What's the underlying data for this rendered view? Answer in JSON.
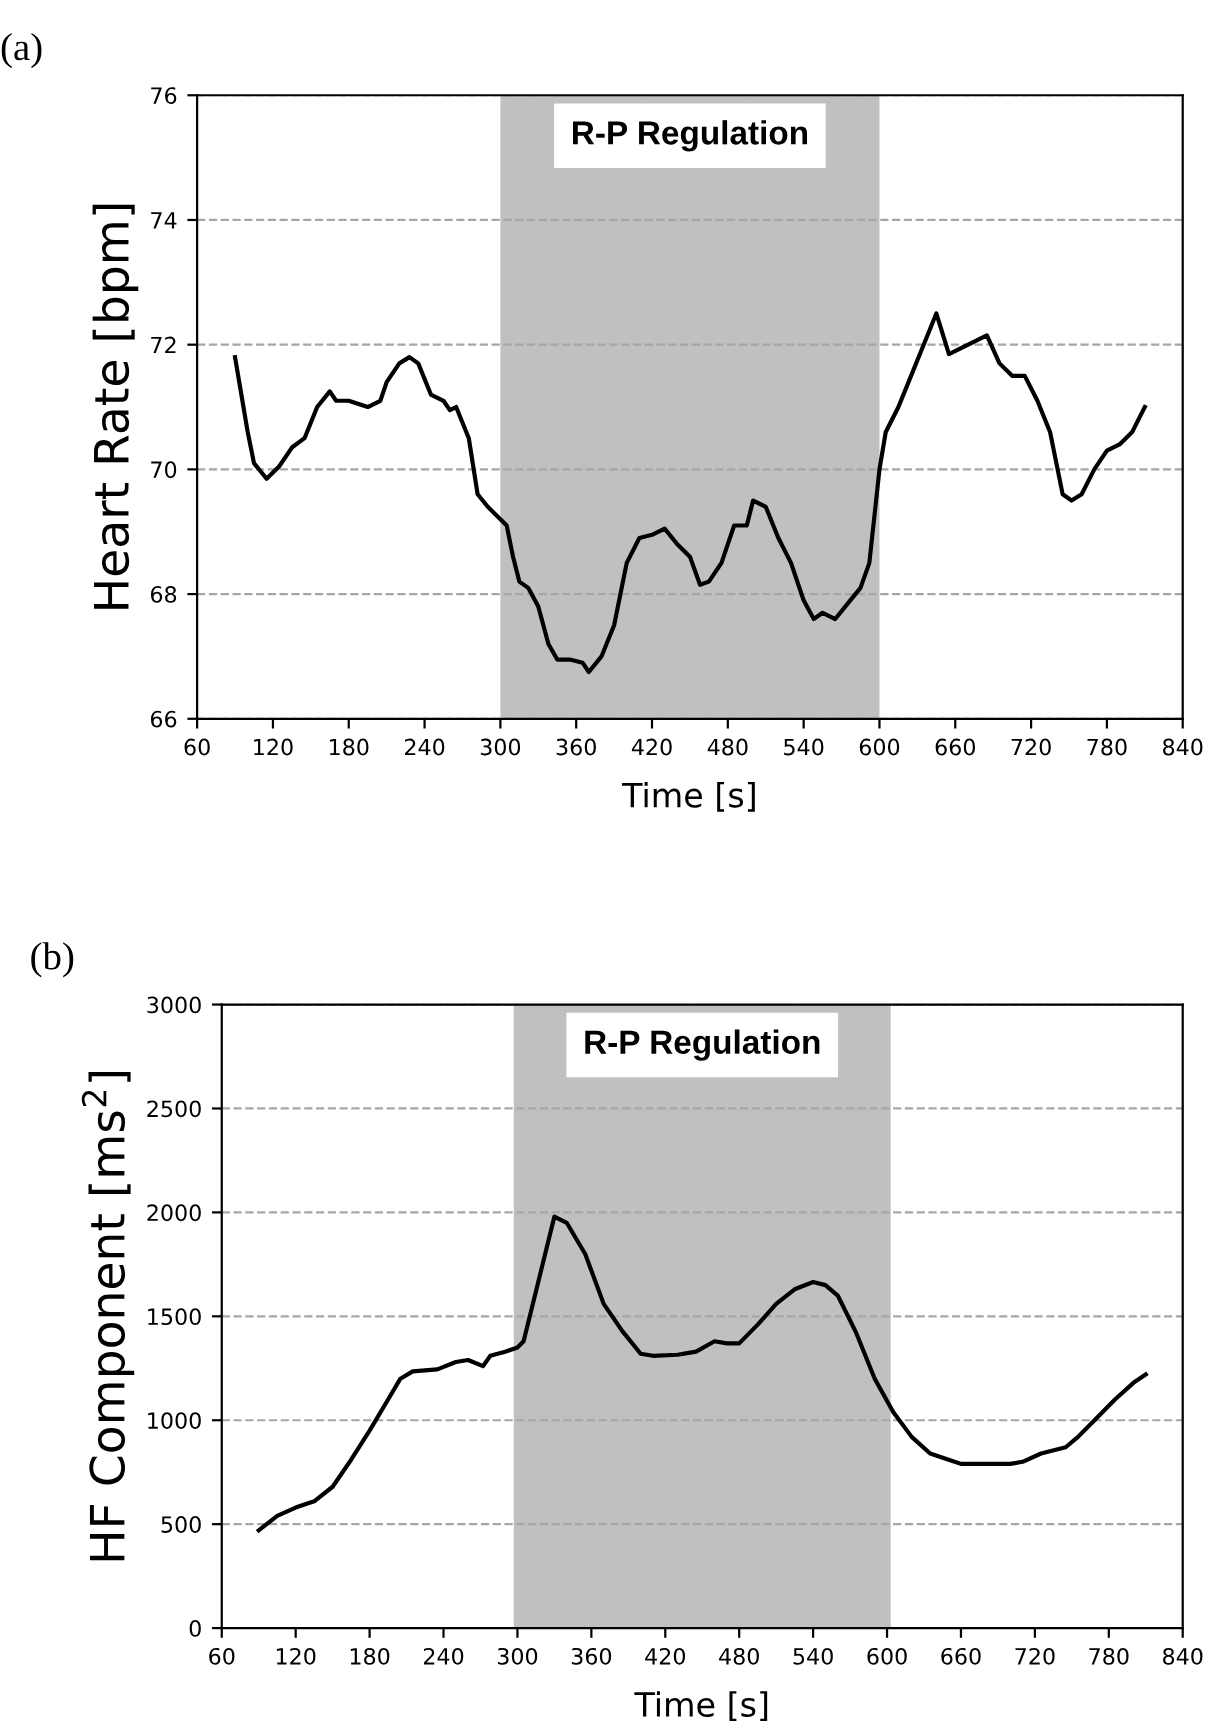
{
  "chart_data": [
    {
      "type": "line",
      "title": "(a)",
      "xlabel": "Time [s]",
      "ylabel": "Heart Rate [bpm]",
      "xlim": [
        60,
        840
      ],
      "xticks": [
        60,
        120,
        180,
        240,
        300,
        360,
        420,
        480,
        540,
        600,
        660,
        720,
        780,
        840
      ],
      "ylim": [
        66,
        76
      ],
      "yticks": [
        66,
        68,
        70,
        72,
        74,
        76
      ],
      "grid": "y",
      "legend": false,
      "marker": "none",
      "line_style": "solid",
      "bands": [
        {
          "axis": "x",
          "from": 300,
          "to": 600,
          "label": "R-P Regulation",
          "color": "#c0c0c0"
        }
      ],
      "series": [
        {
          "color": "#000000",
          "x": [
            90,
            100,
            105,
            115,
            125,
            135,
            145,
            155,
            165,
            170,
            180,
            195,
            205,
            210,
            220,
            228,
            235,
            245,
            255,
            260,
            265,
            275,
            282,
            290,
            300,
            305,
            310,
            315,
            322,
            330,
            338,
            345,
            355,
            365,
            370,
            380,
            390,
            400,
            410,
            420,
            430,
            440,
            450,
            458,
            465,
            475,
            485,
            495,
            500,
            510,
            520,
            530,
            540,
            548,
            555,
            565,
            575,
            585,
            592,
            600,
            605,
            615,
            625,
            635,
            645,
            655,
            665,
            675,
            685,
            695,
            705,
            715,
            725,
            735,
            745,
            752,
            760,
            770,
            780,
            790,
            800,
            810
          ],
          "values": [
            71.8,
            70.6,
            70.1,
            69.85,
            70.05,
            70.35,
            70.5,
            71.0,
            71.25,
            71.1,
            71.1,
            71.0,
            71.1,
            71.4,
            71.7,
            71.8,
            71.7,
            71.2,
            71.1,
            70.95,
            71.0,
            70.5,
            69.6,
            69.4,
            69.2,
            69.1,
            68.6,
            68.2,
            68.1,
            67.8,
            67.2,
            66.95,
            66.95,
            66.9,
            66.75,
            67.0,
            67.5,
            68.5,
            68.9,
            68.95,
            69.05,
            68.8,
            68.6,
            68.15,
            68.2,
            68.5,
            69.1,
            69.1,
            69.5,
            69.4,
            68.9,
            68.5,
            67.9,
            67.6,
            67.7,
            67.6,
            67.85,
            68.1,
            68.5,
            70.0,
            70.6,
            71.0,
            71.5,
            72.0,
            72.5,
            71.85,
            71.95,
            72.05,
            72.15,
            71.7,
            71.5,
            71.5,
            71.1,
            70.6,
            69.6,
            69.5,
            69.6,
            70.0,
            70.3,
            70.4,
            70.6,
            71.0
          ]
        }
      ]
    },
    {
      "type": "line",
      "title": "(b)",
      "xlabel": "Time [s]",
      "ylabel": "HF Component [ms$^{2}$]",
      "xlim": [
        60,
        840
      ],
      "xticks": [
        60,
        120,
        180,
        240,
        300,
        360,
        420,
        480,
        540,
        600,
        660,
        720,
        780,
        840
      ],
      "ylim": [
        0,
        3000
      ],
      "yticks": [
        0,
        500,
        1000,
        1500,
        2000,
        2500,
        3000
      ],
      "grid": "y",
      "legend": false,
      "marker": "none",
      "line_style": "solid",
      "bands": [
        {
          "axis": "x",
          "from": 297,
          "to": 603,
          "label": "R-P Regulation",
          "color": "#c0c0c0"
        }
      ],
      "series": [
        {
          "color": "#000000",
          "x": [
            90,
            105,
            120,
            135,
            150,
            165,
            180,
            195,
            205,
            215,
            235,
            250,
            260,
            272,
            278,
            290,
            300,
            305,
            315,
            330,
            340,
            355,
            370,
            385,
            400,
            410,
            430,
            445,
            460,
            470,
            480,
            495,
            510,
            525,
            540,
            550,
            560,
            575,
            590,
            605,
            620,
            635,
            650,
            660,
            680,
            700,
            710,
            725,
            745,
            755,
            770,
            785,
            800,
            810
          ],
          "values": [
            470,
            540,
            580,
            610,
            680,
            810,
            950,
            1100,
            1200,
            1235,
            1245,
            1280,
            1290,
            1260,
            1310,
            1330,
            1350,
            1380,
            1620,
            1980,
            1950,
            1800,
            1560,
            1430,
            1320,
            1310,
            1315,
            1330,
            1380,
            1370,
            1370,
            1460,
            1560,
            1630,
            1665,
            1650,
            1600,
            1420,
            1200,
            1040,
            920,
            840,
            810,
            790,
            790,
            790,
            800,
            840,
            870,
            920,
            1010,
            1100,
            1180,
            1220
          ]
        }
      ]
    }
  ]
}
